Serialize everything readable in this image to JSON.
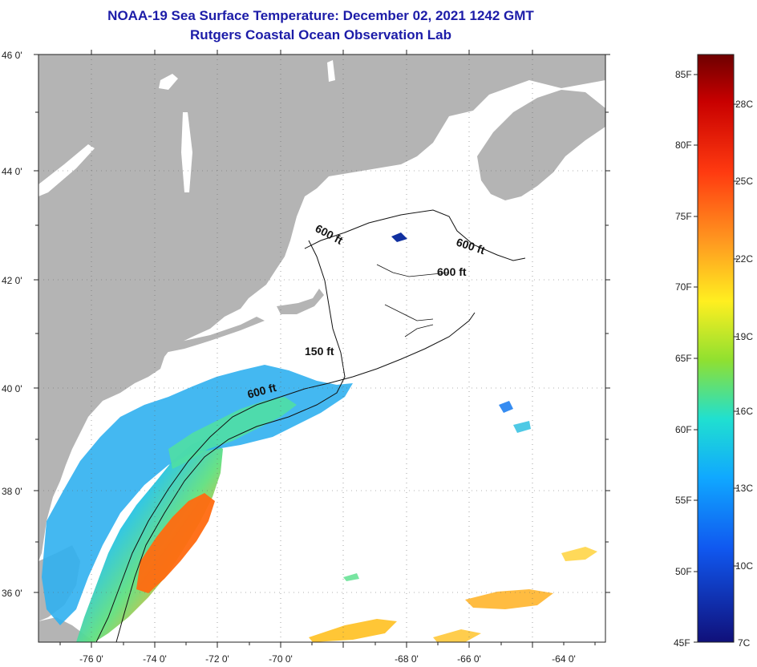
{
  "title": {
    "line1": "NOAA-19 Sea Surface Temperature:  December 02, 2021 1242 GMT",
    "line2": "Rutgers Coastal Ocean Observation Lab"
  },
  "map": {
    "lon_range": [
      -77,
      -63
    ],
    "lat_range": [
      35,
      46
    ],
    "lat_ticks": [
      "46 0'",
      "44 0'",
      "42 0'",
      "40 0'",
      "38 0'",
      "36 0'"
    ],
    "lon_ticks": [
      "-76 0'",
      "-74 0'",
      "-72 0'",
      "-70 0'",
      "-68 0'",
      "-66 0'",
      "-64 0'"
    ],
    "depth_labels": [
      "600 ft",
      "600 ft",
      "600 ft",
      "150 ft",
      "600 ft"
    ],
    "land_color": "#b4b4b4",
    "water_color": "#ffffff"
  },
  "colorbar": {
    "fahrenheit_labels": [
      "85F",
      "80F",
      "75F",
      "70F",
      "65F",
      "60F",
      "55F",
      "50F",
      "45F"
    ],
    "celsius_labels": [
      "28C",
      "25C",
      "22C",
      "19C",
      "16C",
      "13C",
      "10C",
      "7C"
    ],
    "colors": [
      "#7a0000",
      "#e01010",
      "#ff6010",
      "#ffb020",
      "#ffff20",
      "#80e040",
      "#10e0e0",
      "#10a0ff",
      "#1040e0",
      "#10109a"
    ]
  }
}
